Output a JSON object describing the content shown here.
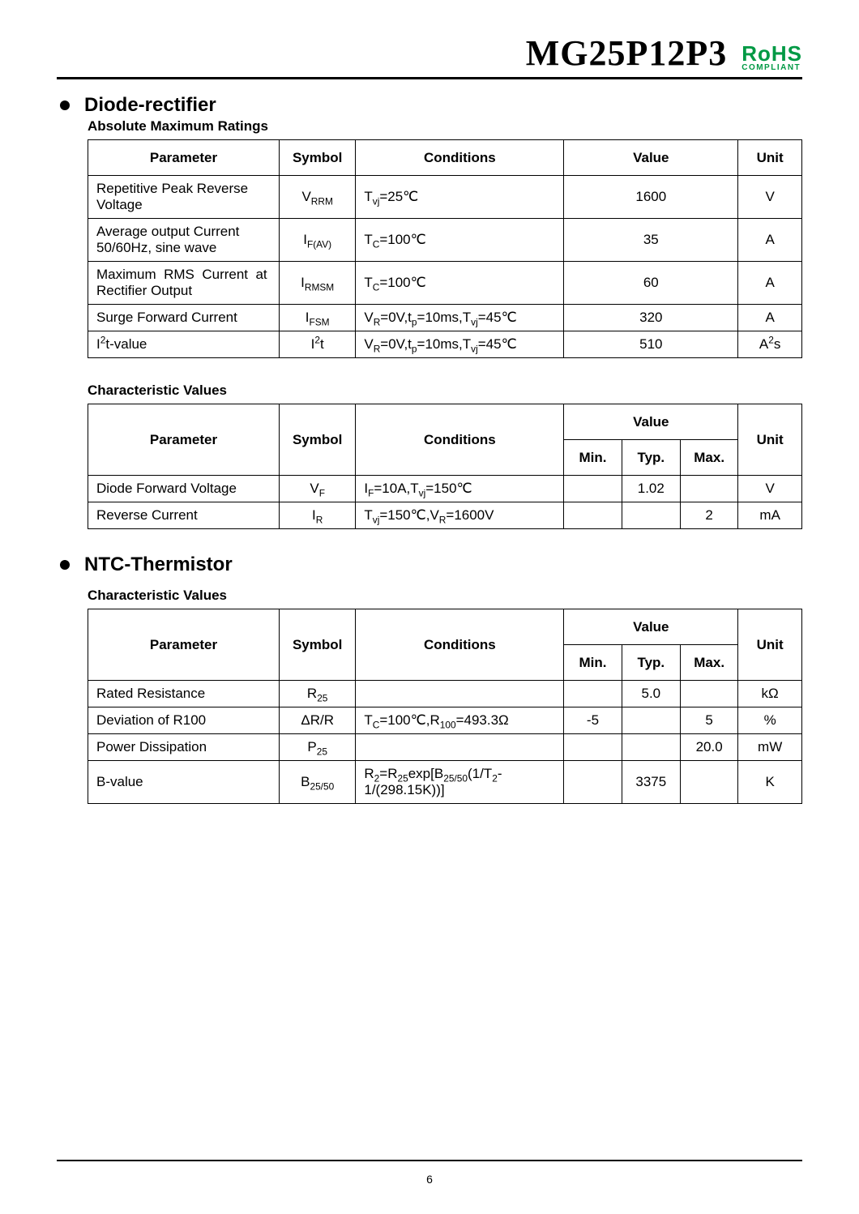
{
  "header": {
    "part_number": "MG25P12P3",
    "rohs_top": "RoHS",
    "rohs_bottom": "COMPLIANT"
  },
  "page_number": "6",
  "sections": {
    "diode": {
      "title": "Diode-rectifier",
      "abs_max": {
        "title": "Absolute Maximum Ratings",
        "headers": {
          "param": "Parameter",
          "symbol": "Symbol",
          "cond": "Conditions",
          "value": "Value",
          "unit": "Unit"
        },
        "rows": [
          {
            "param": "Repetitive Peak Reverse Voltage",
            "sym_html": "V<sub>RRM</sub>",
            "cond_html": "T<sub>vj</sub>=25℃",
            "value": "1600",
            "unit": "V"
          },
          {
            "param": "Average output Current 50/60Hz, sine wave",
            "sym_html": "I<sub>F(AV)</sub>",
            "cond_html": "T<sub>C</sub>=100℃",
            "value": "35",
            "unit": "A"
          },
          {
            "param_html": "Maximum&nbsp;&nbsp;RMS&nbsp;&nbsp;Current&nbsp;&nbsp;at Rectifier Output",
            "sym_html": "I<sub>RMSM</sub>",
            "cond_html": "T<sub>C</sub>=100℃",
            "value": "60",
            "unit": "A"
          },
          {
            "param": "Surge Forward Current",
            "sym_html": "I<sub>FSM</sub>",
            "cond_html": "V<sub>R</sub>=0V,t<sub>p</sub>=10ms,T<sub>vj</sub>=45℃",
            "value": "320",
            "unit": "A"
          },
          {
            "param_html": "I<sup>2</sup>t-value",
            "sym_html": "I<sup>2</sup>t",
            "cond_html": "V<sub>R</sub>=0V,t<sub>p</sub>=10ms,T<sub>vj</sub>=45℃",
            "value": "510",
            "unit_html": "A<sup>2</sup>s"
          }
        ]
      },
      "char": {
        "title": "Characteristic Values",
        "headers": {
          "param": "Parameter",
          "symbol": "Symbol",
          "cond": "Conditions",
          "value": "Value",
          "min": "Min.",
          "typ": "Typ.",
          "max": "Max.",
          "unit": "Unit"
        },
        "rows": [
          {
            "param": "Diode Forward Voltage",
            "sym_html": "V<sub>F</sub>",
            "cond_html": "I<sub>F</sub>=10A,T<sub>vj</sub>=150℃",
            "min": "",
            "typ": "1.02",
            "max": "",
            "unit": "V"
          },
          {
            "param": "Reverse Current",
            "sym_html": "I<sub>R</sub>",
            "cond_html": "T<sub>vj</sub>=150℃,V<sub>R</sub>=1600V",
            "min": "",
            "typ": "",
            "max": "2",
            "unit": "mA"
          }
        ]
      }
    },
    "ntc": {
      "title": "NTC-Thermistor",
      "char": {
        "title": "Characteristic Values",
        "headers": {
          "param": "Parameter",
          "symbol": "Symbol",
          "cond": "Conditions",
          "value": "Value",
          "min": "Min.",
          "typ": "Typ.",
          "max": "Max.",
          "unit": "Unit"
        },
        "rows": [
          {
            "param": "Rated Resistance",
            "sym_html": "R<sub>25</sub>",
            "cond_html": "",
            "min": "",
            "typ": "5.0",
            "max": "",
            "unit": "kΩ"
          },
          {
            "param": "Deviation of R100",
            "sym_html": "ΔR/R",
            "cond_html": "T<sub>C</sub>=100℃,R<sub>100</sub>=493.3Ω",
            "min": "-5",
            "typ": "",
            "max": "5",
            "unit": "%"
          },
          {
            "param": "Power Dissipation",
            "sym_html": "P<sub>25</sub>",
            "cond_html": "",
            "min": "",
            "typ": "",
            "max": "20.0",
            "unit": "mW"
          },
          {
            "param": "B-value",
            "sym_html": "B<sub>25/50</sub>",
            "cond_html": "R<sub>2</sub>=R<sub>25</sub>exp[B<sub>25/50</sub>(1/T<sub>2</sub>-1/(298.15K))]",
            "min": "",
            "typ": "3375",
            "max": "",
            "unit": "K"
          }
        ]
      }
    }
  }
}
